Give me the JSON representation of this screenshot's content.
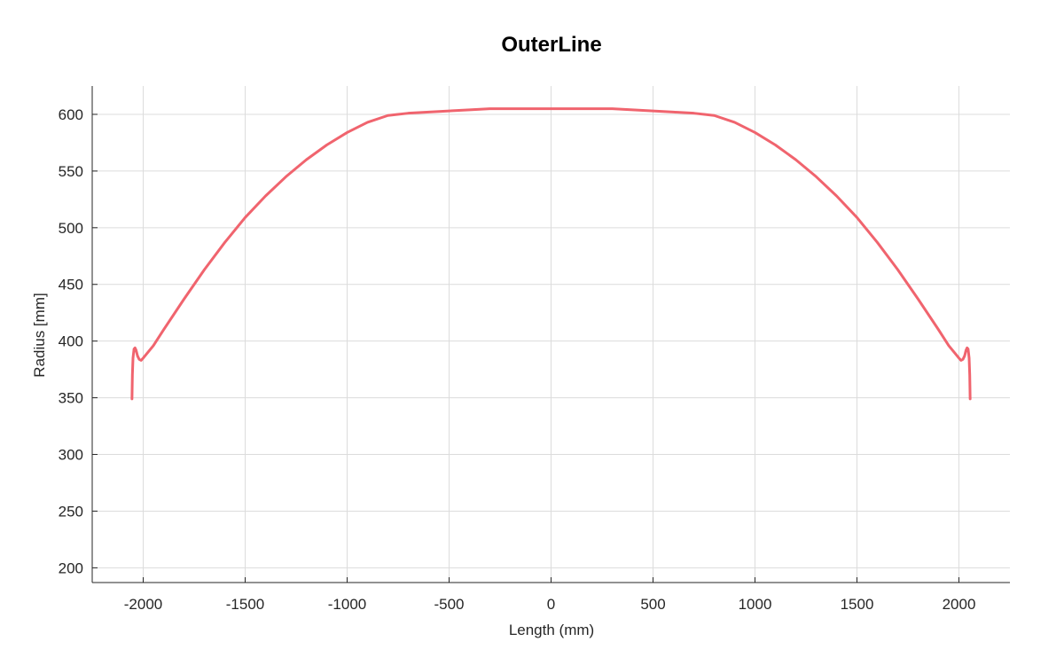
{
  "chart_data": {
    "type": "line",
    "title": "OuterLine",
    "xlabel": "Length (mm)",
    "ylabel": "Radius [mm]",
    "xlim": [
      -2250,
      2250
    ],
    "ylim": [
      187,
      625
    ],
    "xticks": [
      -2000,
      -1500,
      -1000,
      -500,
      0,
      500,
      1000,
      1500,
      2000
    ],
    "yticks": [
      200,
      250,
      300,
      350,
      400,
      450,
      500,
      550,
      600
    ],
    "xtick_labels": [
      "-2000",
      "-1500",
      "-1000",
      "-500",
      "0",
      "500",
      "1000",
      "1500",
      "2000"
    ],
    "ytick_labels": [
      "200",
      "250",
      "300",
      "350",
      "400",
      "450",
      "500",
      "550",
      "600"
    ],
    "grid": true,
    "series": [
      {
        "color": "#f0646e",
        "points": [
          [
            -2055,
            349
          ],
          [
            -2053,
            370
          ],
          [
            -2050,
            385
          ],
          [
            -2045,
            393
          ],
          [
            -2040,
            394
          ],
          [
            -2035,
            392
          ],
          [
            -2028,
            387
          ],
          [
            -2020,
            384
          ],
          [
            -2010,
            383
          ],
          [
            -2000,
            385
          ],
          [
            -1950,
            396
          ],
          [
            -1900,
            410
          ],
          [
            -1800,
            437
          ],
          [
            -1700,
            463
          ],
          [
            -1600,
            487
          ],
          [
            -1500,
            509
          ],
          [
            -1400,
            528
          ],
          [
            -1300,
            545
          ],
          [
            -1200,
            560
          ],
          [
            -1100,
            573
          ],
          [
            -1000,
            584
          ],
          [
            -900,
            593
          ],
          [
            -800,
            599
          ],
          [
            -700,
            601
          ],
          [
            -600,
            602
          ],
          [
            -500,
            603
          ],
          [
            -400,
            604
          ],
          [
            -300,
            605
          ],
          [
            -200,
            605
          ],
          [
            -100,
            605
          ],
          [
            0,
            605
          ],
          [
            100,
            605
          ],
          [
            200,
            605
          ],
          [
            300,
            605
          ],
          [
            400,
            604
          ],
          [
            500,
            603
          ],
          [
            600,
            602
          ],
          [
            700,
            601
          ],
          [
            800,
            599
          ],
          [
            900,
            593
          ],
          [
            1000,
            584
          ],
          [
            1100,
            573
          ],
          [
            1200,
            560
          ],
          [
            1300,
            545
          ],
          [
            1400,
            528
          ],
          [
            1500,
            509
          ],
          [
            1600,
            487
          ],
          [
            1700,
            463
          ],
          [
            1800,
            437
          ],
          [
            1900,
            410
          ],
          [
            1950,
            396
          ],
          [
            2000,
            385
          ],
          [
            2010,
            383
          ],
          [
            2020,
            384
          ],
          [
            2028,
            387
          ],
          [
            2035,
            392
          ],
          [
            2040,
            394
          ],
          [
            2045,
            393
          ],
          [
            2050,
            385
          ],
          [
            2053,
            370
          ],
          [
            2055,
            349
          ]
        ]
      }
    ]
  }
}
